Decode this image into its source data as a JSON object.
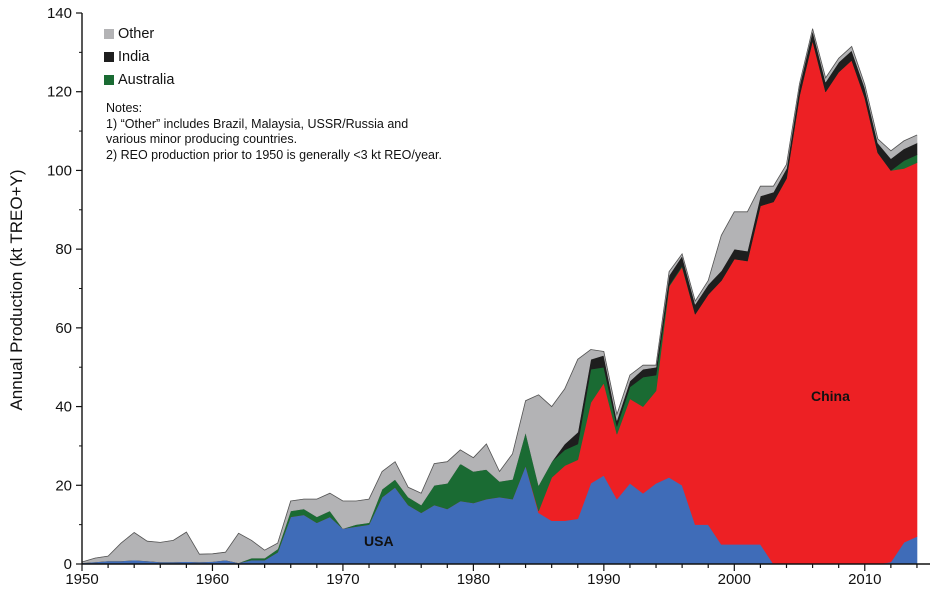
{
  "chart_data": {
    "type": "area",
    "stacked": true,
    "ylabel": "Annual  Production (kt TREO+Y)",
    "xlim": [
      1950,
      2015
    ],
    "ylim": [
      0,
      140
    ],
    "x_ticks": [
      1950,
      1960,
      1970,
      1980,
      1990,
      2000,
      2010
    ],
    "y_ticks": [
      0,
      20,
      40,
      60,
      80,
      100,
      120,
      140
    ],
    "legend_position": "top-left",
    "legend": [
      "Other",
      "India",
      "Australia"
    ],
    "region_labels": [
      "USA",
      "China"
    ],
    "notes": [
      "Notes:",
      "1) “Other” includes Brazil, Malaysia, USSR/Russia and",
      "various minor producing countries.",
      "2) REO production prior to 1950 is generally <3 kt REO/year."
    ],
    "x": [
      1950,
      1951,
      1952,
      1953,
      1954,
      1955,
      1956,
      1957,
      1958,
      1959,
      1960,
      1961,
      1962,
      1963,
      1964,
      1965,
      1966,
      1967,
      1968,
      1969,
      1970,
      1971,
      1972,
      1973,
      1974,
      1975,
      1976,
      1977,
      1978,
      1979,
      1980,
      1981,
      1982,
      1983,
      1984,
      1985,
      1986,
      1987,
      1988,
      1989,
      1990,
      1991,
      1992,
      1993,
      1994,
      1995,
      1996,
      1997,
      1998,
      1999,
      2000,
      2001,
      2002,
      2003,
      2004,
      2005,
      2006,
      2007,
      2008,
      2009,
      2010,
      2011,
      2012,
      2013,
      2014
    ],
    "series": [
      {
        "name": "USA",
        "color": "#3f6cb8",
        "values": [
          0.3,
          0.5,
          0.8,
          0.8,
          1.0,
          0.8,
          0.5,
          0.5,
          0.6,
          0.5,
          0.6,
          1.0,
          0.3,
          1.0,
          1.0,
          3.0,
          12.0,
          12.5,
          10.5,
          12.0,
          9.0,
          9.5,
          10.0,
          17.0,
          19.5,
          15.0,
          13.0,
          15.0,
          14.0,
          16.0,
          15.5,
          16.5,
          17.0,
          16.5,
          25.0,
          13.0,
          11.0,
          11.0,
          11.5,
          20.5,
          22.5,
          16.5,
          20.5,
          18.0,
          20.5,
          22.0,
          20.0,
          10.0,
          10.0,
          5.0,
          5.0,
          5.0,
          5.0,
          0,
          0,
          0,
          0,
          0,
          0,
          0,
          0,
          0,
          0.5,
          5.5,
          7.0
        ]
      },
      {
        "name": "China",
        "color": "#ed2024",
        "values": [
          0,
          0,
          0,
          0,
          0,
          0,
          0,
          0,
          0,
          0,
          0,
          0,
          0,
          0,
          0,
          0,
          0,
          0,
          0,
          0,
          0,
          0,
          0,
          0,
          0,
          0,
          0,
          0,
          0,
          0,
          0,
          0,
          0,
          0,
          0,
          0.5,
          11.0,
          14.0,
          15.0,
          20.5,
          23.5,
          16.5,
          21.5,
          22.0,
          23.5,
          48.5,
          55.5,
          53.5,
          58.5,
          67.0,
          72.5,
          72.0,
          86.0,
          92.0,
          98.0,
          119.0,
          133.0,
          120.0,
          125.0,
          128.0,
          118.5,
          104.5,
          99.5,
          95.0,
          95.0
        ]
      },
      {
        "name": "Australia",
        "color": "#1a6b33",
        "values": [
          0,
          0,
          0,
          0,
          0,
          0,
          0,
          0,
          0,
          0,
          0,
          0,
          0,
          0.5,
          0.5,
          0.8,
          1.5,
          1.5,
          1.5,
          1.5,
          0,
          0.5,
          0.5,
          2.0,
          2.0,
          2.0,
          2.0,
          5.0,
          6.5,
          9.5,
          8.0,
          7.5,
          4.0,
          5.0,
          8.5,
          6.5,
          4.0,
          4.0,
          4.0,
          8.5,
          4.0,
          2.0,
          3.0,
          7.5,
          4.0,
          0.3,
          0.3,
          0,
          0,
          0,
          0,
          0,
          0,
          0,
          0,
          0,
          0,
          0,
          0,
          0,
          0,
          0,
          0,
          2.0,
          2.0
        ]
      },
      {
        "name": "India",
        "color": "#1e1e1e",
        "values": [
          0,
          0,
          0,
          0,
          0,
          0,
          0,
          0,
          0,
          0,
          0,
          0,
          0,
          0,
          0,
          0,
          0,
          0,
          0,
          0,
          0,
          0,
          0,
          0,
          0,
          0,
          0,
          0,
          0,
          0,
          0,
          0,
          0,
          0,
          0,
          0,
          0,
          1.5,
          3.0,
          2.5,
          3.0,
          1.5,
          1.5,
          2.0,
          2.0,
          2.5,
          2.5,
          2.5,
          2.5,
          2.5,
          2.5,
          2.5,
          2.5,
          2.5,
          2.5,
          2.5,
          2.5,
          2.5,
          2.5,
          2.5,
          2.5,
          2.5,
          3.0,
          3.0,
          3.0
        ]
      },
      {
        "name": "Other",
        "color": "#b3b3b5",
        "values": [
          0.2,
          1.0,
          1.2,
          4.5,
          7.0,
          5.0,
          5.0,
          5.5,
          7.5,
          2.0,
          2.0,
          2.0,
          7.5,
          4.5,
          2.0,
          1.5,
          2.5,
          2.5,
          4.5,
          4.5,
          7.0,
          6.0,
          6.0,
          4.5,
          4.5,
          2.5,
          3.0,
          5.5,
          5.5,
          3.5,
          3.5,
          6.5,
          2.5,
          6.5,
          8.0,
          23.0,
          14.0,
          14.0,
          18.5,
          2.5,
          1.0,
          1.5,
          1.5,
          1.0,
          0.5,
          1.0,
          0.5,
          0.8,
          1.0,
          9.0,
          9.5,
          10.0,
          2.5,
          1.5,
          1.0,
          0.5,
          0.5,
          1.0,
          1.0,
          1.0,
          0.8,
          1.0,
          2.0,
          2.0,
          2.0
        ]
      }
    ]
  },
  "colors": {
    "axis": "#111111",
    "legend_other": "#b3b3b5",
    "legend_india": "#1e1e1e",
    "legend_australia": "#1a6b33"
  }
}
